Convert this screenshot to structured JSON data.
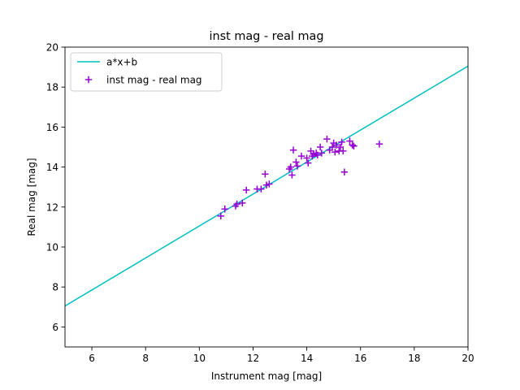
{
  "chart_data": {
    "type": "scatter",
    "title": "inst mag - real mag",
    "xlabel": "Instrument mag [mag]",
    "ylabel": "Real mag [mag]",
    "xlim": [
      5,
      20
    ],
    "ylim": [
      5,
      20
    ],
    "xticks": [
      6,
      8,
      10,
      12,
      14,
      16,
      18,
      20
    ],
    "yticks": [
      6,
      8,
      10,
      12,
      14,
      16,
      18,
      20
    ],
    "grid": false,
    "legend_position": "top-left",
    "series": [
      {
        "name": "a*x+b",
        "kind": "line",
        "color": "#00bfbf",
        "points": [
          [
            5,
            7.05
          ],
          [
            20,
            19.05
          ]
        ]
      },
      {
        "name": "inst mag - real mag",
        "kind": "scatter",
        "marker": "plus",
        "color": "#9400d3",
        "points": [
          [
            10.8,
            11.55
          ],
          [
            10.95,
            11.9
          ],
          [
            11.35,
            12.05
          ],
          [
            11.4,
            12.15
          ],
          [
            11.6,
            12.2
          ],
          [
            11.75,
            12.85
          ],
          [
            12.15,
            12.9
          ],
          [
            12.3,
            12.9
          ],
          [
            12.45,
            13.65
          ],
          [
            12.5,
            13.1
          ],
          [
            12.6,
            13.15
          ],
          [
            13.35,
            13.9
          ],
          [
            13.4,
            14.0
          ],
          [
            13.45,
            13.6
          ],
          [
            13.5,
            14.85
          ],
          [
            13.6,
            14.25
          ],
          [
            13.65,
            14.05
          ],
          [
            13.8,
            14.55
          ],
          [
            14.0,
            14.45
          ],
          [
            14.05,
            14.2
          ],
          [
            14.15,
            14.8
          ],
          [
            14.2,
            14.55
          ],
          [
            14.25,
            14.65
          ],
          [
            14.35,
            14.7
          ],
          [
            14.4,
            14.6
          ],
          [
            14.5,
            15.0
          ],
          [
            14.55,
            14.7
          ],
          [
            14.75,
            15.4
          ],
          [
            14.85,
            14.85
          ],
          [
            14.95,
            15.0
          ],
          [
            15.0,
            15.2
          ],
          [
            15.05,
            14.75
          ],
          [
            15.1,
            15.1
          ],
          [
            15.2,
            14.8
          ],
          [
            15.25,
            15.0
          ],
          [
            15.3,
            15.25
          ],
          [
            15.35,
            14.8
          ],
          [
            15.4,
            13.75
          ],
          [
            15.6,
            15.3
          ],
          [
            15.7,
            15.1
          ],
          [
            15.75,
            15.05
          ],
          [
            16.7,
            15.15
          ]
        ]
      }
    ]
  }
}
